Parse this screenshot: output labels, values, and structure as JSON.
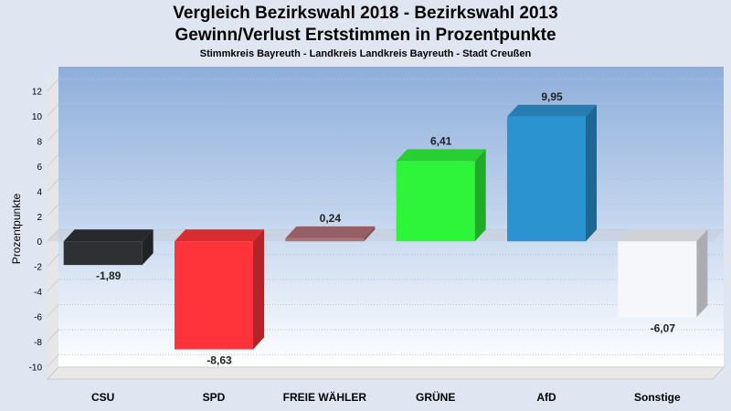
{
  "chart_data": {
    "type": "bar",
    "title": "Vergleich Bezirkswahl 2018 - Bezirkswahl 2013",
    "title2": "Gewinn/Verlust Erststimmen in Prozentpunkte",
    "subtitle": "Stimmkreis Bayreuth - Landkreis Landkreis Bayreuth - Stadt Creußen",
    "ylabel": "Prozentpunkte",
    "ylim": [
      -11,
      13
    ],
    "yticks": [
      12,
      10,
      8,
      6,
      4,
      2,
      0,
      -2,
      -4,
      -6,
      -8,
      -10
    ],
    "categories": [
      "CSU",
      "SPD",
      "FREIE WÄHLER",
      "GRÜNE",
      "AfD",
      "Sonstige"
    ],
    "values": [
      -1.89,
      -8.63,
      0.24,
      6.41,
      9.95,
      -6.07
    ],
    "value_labels": [
      "-1,89",
      "-8,63",
      "0,24",
      "6,41",
      "9,95",
      "-6,07"
    ],
    "colors": [
      "#2e3034",
      "#ff343a",
      "#b07078",
      "#2ef43a",
      "#2b93d0",
      "#f6f7fb"
    ],
    "grid": true
  }
}
